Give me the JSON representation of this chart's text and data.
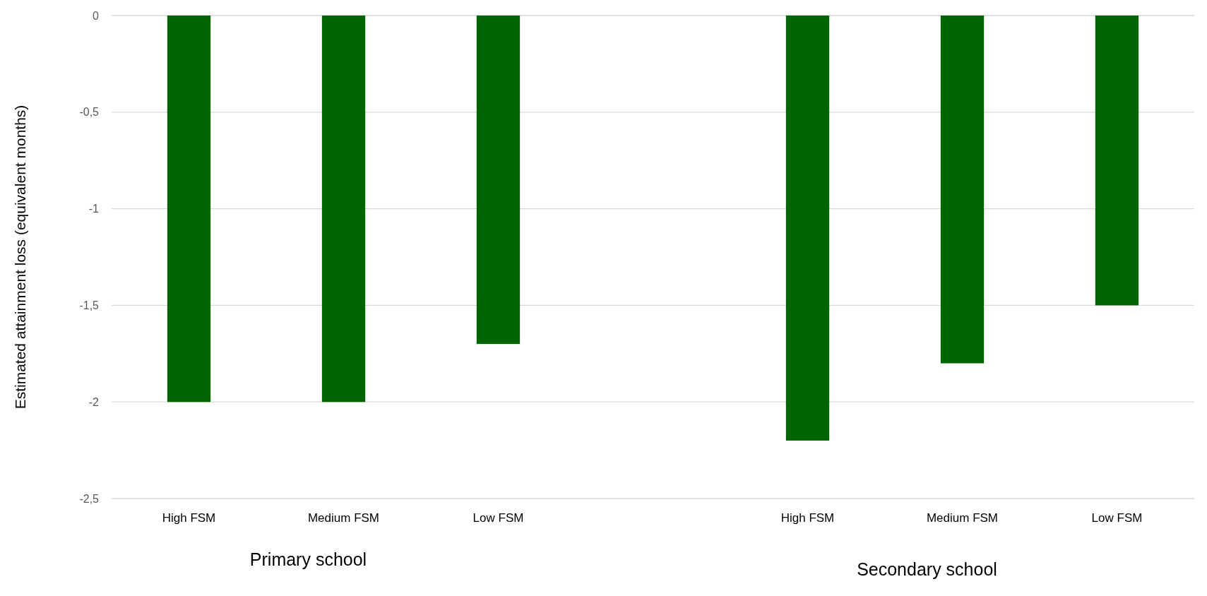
{
  "chart_data": {
    "type": "bar",
    "ylabel": "Estimated attainment  loss (equivalent months)",
    "categories": [
      "High FSM",
      "Medium FSM",
      "Low FSM",
      null,
      "High FSM",
      "Medium FSM",
      "Low FSM"
    ],
    "values": [
      -2,
      -2,
      -1.7,
      null,
      -2.2,
      -1.8,
      -1.5
    ],
    "color": "#006400",
    "ylim": [
      -2.5,
      0
    ],
    "yticks": [
      {
        "value": 0,
        "label": "0"
      },
      {
        "value": -0.5,
        "label": "-0,5"
      },
      {
        "value": -1,
        "label": "-1"
      },
      {
        "value": -1.5,
        "label": "-1,5"
      },
      {
        "value": -2,
        "label": "-2"
      },
      {
        "value": -2.5,
        "label": "-2,5"
      }
    ],
    "grid": "y",
    "annotations": [
      "Primary school",
      "Secondary school"
    ]
  }
}
